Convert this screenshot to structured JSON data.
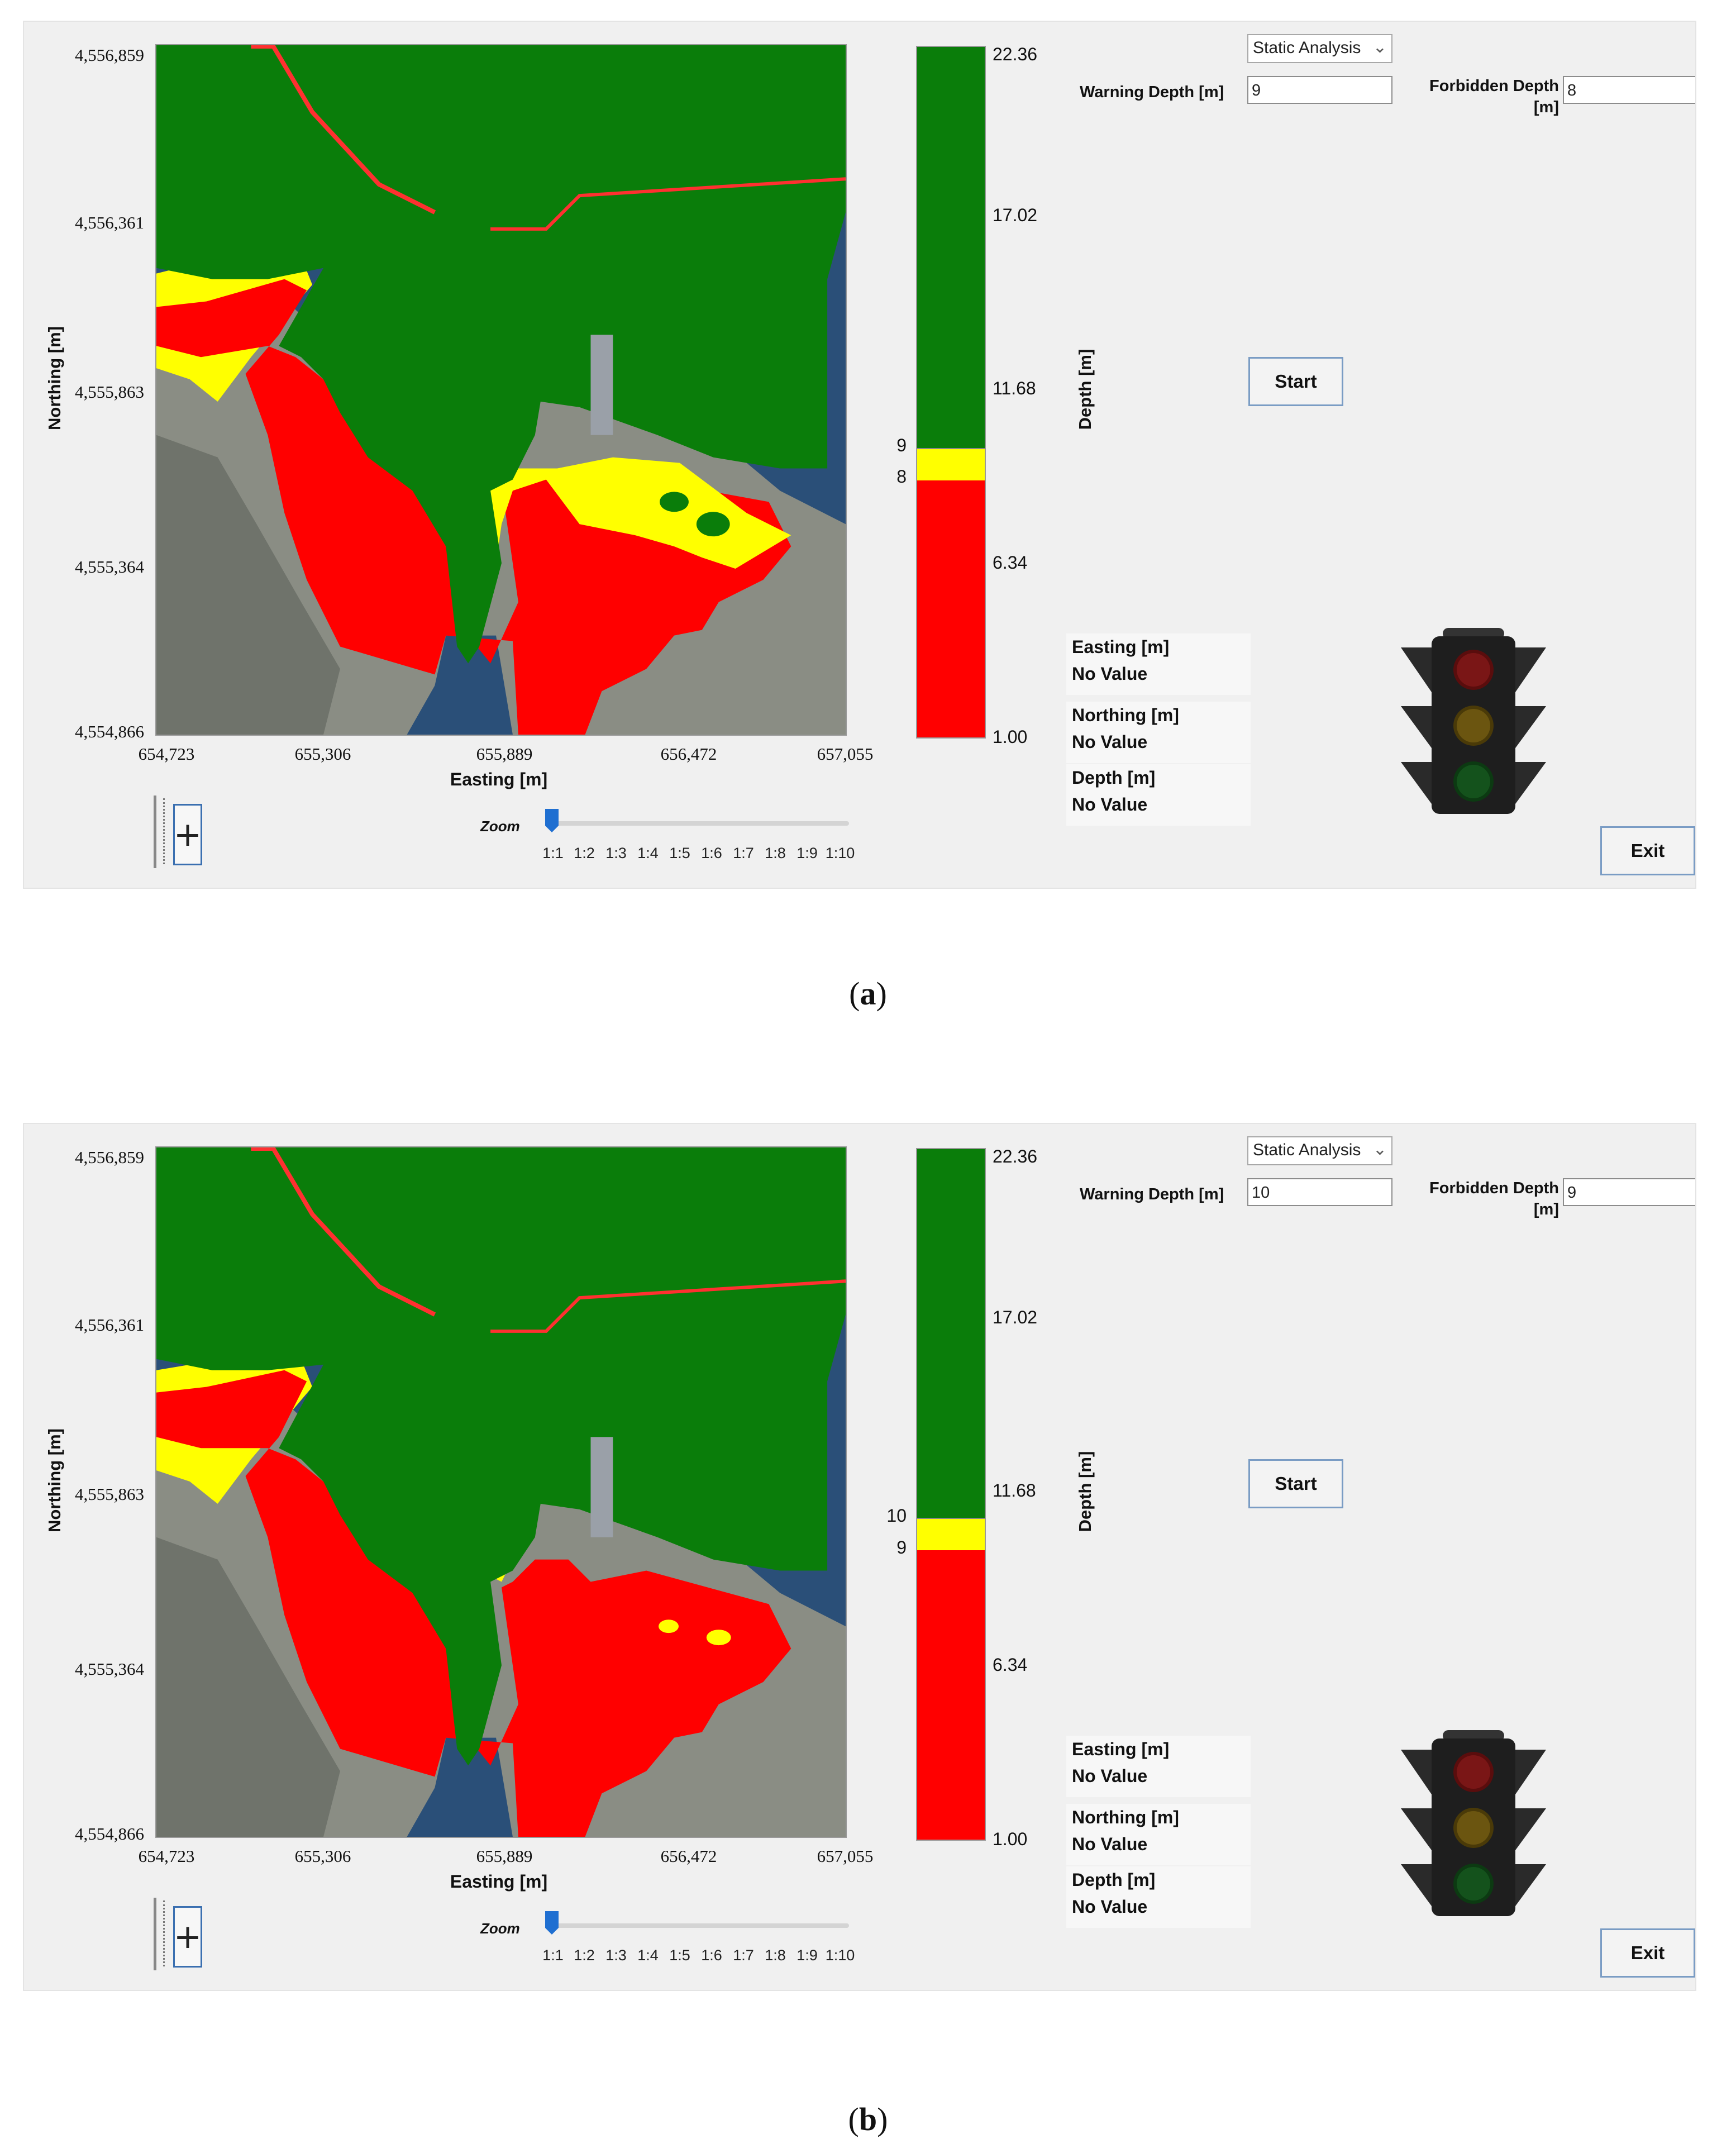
{
  "panels": [
    {
      "id": "a",
      "caption_letter": "a",
      "map": {
        "y_ticks": [
          "4,556,859",
          "4,556,361",
          "4,555,863",
          "4,555,364",
          "4,554,866"
        ],
        "x_ticks": [
          "654,723",
          "655,306",
          "655,889",
          "656,472",
          "657,055"
        ],
        "ylabel": "Northing [m]",
        "xlabel": "Easting [m]"
      },
      "colorbar": {
        "ticks": [
          "22.36",
          "17.02",
          "11.68",
          "6.34",
          "1.00"
        ],
        "warning_mark": "9",
        "forbidden_mark": "8",
        "label": "Depth [m]"
      },
      "controls": {
        "analysis_select": "Static Analysis",
        "warning_label": "Warning Depth [m]",
        "warning_value": "9",
        "forbidden_label_line1": "Forbidden Depth",
        "forbidden_label_line2": "[m]",
        "forbidden_value": "8",
        "start_label": "Start",
        "exit_label": "Exit"
      },
      "info": {
        "easting_label": "Easting [m]",
        "easting_value": "No Value",
        "northing_label": "Northing [m]",
        "northing_value": "No Value",
        "depth_label": "Depth [m]",
        "depth_value": "No Value"
      },
      "zoom": {
        "label": "Zoom",
        "ticks": [
          "1:1",
          "1:2",
          "1:3",
          "1:4",
          "1:5",
          "1:6",
          "1:7",
          "1:8",
          "1:9",
          "1:10"
        ],
        "level": "1:1"
      }
    },
    {
      "id": "b",
      "caption_letter": "b",
      "map": {
        "y_ticks": [
          "4,556,859",
          "4,556,361",
          "4,555,863",
          "4,555,364",
          "4,554,866"
        ],
        "x_ticks": [
          "654,723",
          "655,306",
          "655,889",
          "656,472",
          "657,055"
        ],
        "ylabel": "Northing [m]",
        "xlabel": "Easting [m]"
      },
      "colorbar": {
        "ticks": [
          "22.36",
          "17.02",
          "11.68",
          "6.34",
          "1.00"
        ],
        "warning_mark": "10",
        "forbidden_mark": "9",
        "label": "Depth [m]"
      },
      "controls": {
        "analysis_select": "Static Analysis",
        "warning_label": "Warning Depth [m]",
        "warning_value": "10",
        "forbidden_label_line1": "Forbidden Depth",
        "forbidden_label_line2": "[m]",
        "forbidden_value": "9",
        "start_label": "Start",
        "exit_label": "Exit"
      },
      "info": {
        "easting_label": "Easting [m]",
        "easting_value": "No Value",
        "northing_label": "Northing [m]",
        "northing_value": "No Value",
        "depth_label": "Depth [m]",
        "depth_value": "No Value"
      },
      "zoom": {
        "label": "Zoom",
        "ticks": [
          "1:1",
          "1:2",
          "1:3",
          "1:4",
          "1:5",
          "1:6",
          "1:7",
          "1:8",
          "1:9",
          "1:10"
        ],
        "level": "1:1"
      }
    }
  ],
  "colors": {
    "safe": "#0a7d0a",
    "warning": "#ffff00",
    "forbidden": "#ff0000",
    "sea": "#2a4f78",
    "land": "#8a8d84"
  }
}
